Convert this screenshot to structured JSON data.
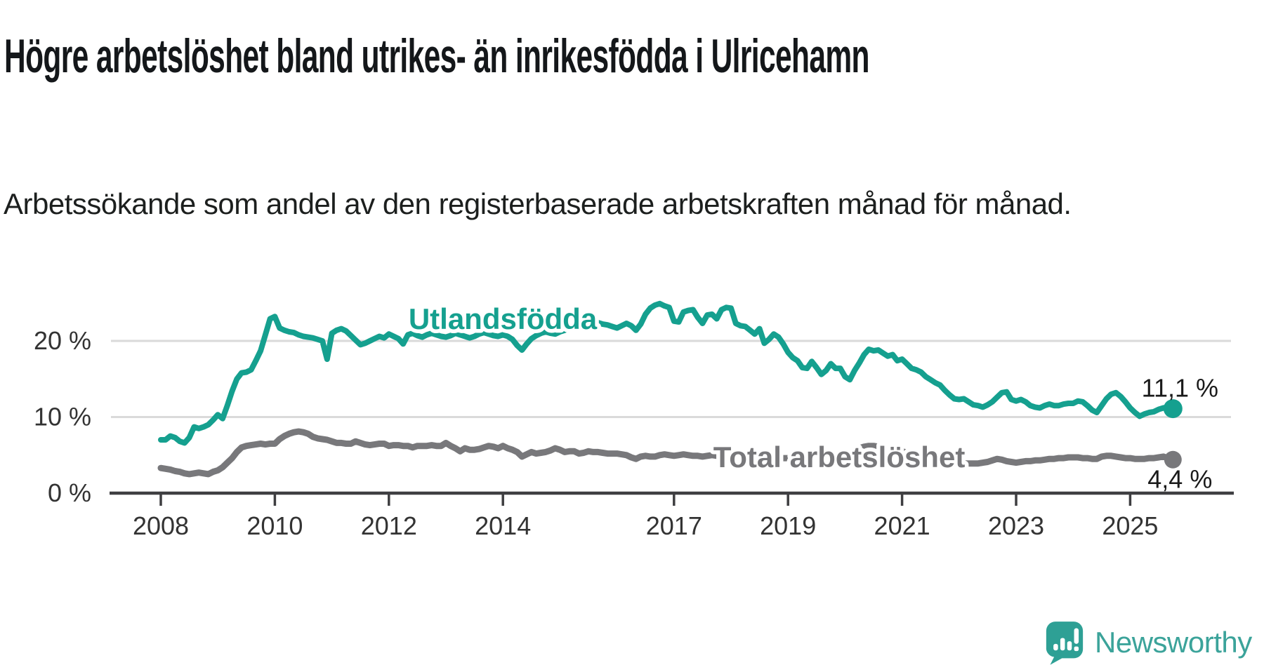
{
  "header": {
    "title": "Högre arbetslöshet bland utrikes- än inrikesfödda i Ulricehamn",
    "subtitle": "Arbetssökande som andel av den registerbaserade arbetskraften månad för månad."
  },
  "chart_data": {
    "type": "line",
    "title": "Högre arbetslöshet bland utrikes- än inrikesfödda i Ulricehamn",
    "subtitle": "Arbetssökande som andel av den registerbaserade arbetskraften månad för månad.",
    "x_frequency": "monthly",
    "x_start": "2008-01",
    "x_end": "2025-10",
    "x_tick_years": [
      2008,
      2010,
      2012,
      2014,
      2017,
      2019,
      2021,
      2023,
      2025
    ],
    "x_tick_labels": [
      "2008",
      "2010",
      "2012",
      "2014",
      "2017",
      "2019",
      "2021",
      "2023",
      "2025"
    ],
    "y_ticks": [
      {
        "value": 0,
        "label": "0 %"
      },
      {
        "value": 10,
        "label": "10 %"
      },
      {
        "value": 20,
        "label": "20 %"
      }
    ],
    "ylim": [
      0,
      27
    ],
    "grid": "horizontal-only",
    "legend_position": "inline-labels",
    "series": [
      {
        "name": "Utlandsfödda",
        "color": "#15A08F",
        "end_label": "11,1 %",
        "last_value": 11.1,
        "values": [
          7.0,
          7.0,
          7.5,
          7.3,
          6.8,
          6.6,
          7.3,
          8.7,
          8.5,
          8.7,
          9.0,
          9.6,
          10.3,
          9.8,
          11.5,
          13.4,
          15.0,
          15.8,
          15.9,
          16.2,
          17.4,
          18.7,
          20.8,
          22.9,
          23.2,
          21.7,
          21.4,
          21.2,
          21.1,
          20.8,
          20.6,
          20.5,
          20.4,
          20.2,
          20.0,
          17.6,
          21.0,
          21.4,
          21.6,
          21.3,
          20.7,
          20.1,
          19.5,
          19.7,
          20.0,
          20.3,
          20.6,
          20.4,
          20.9,
          20.6,
          20.3,
          19.6,
          20.8,
          21.0,
          20.7,
          20.5,
          20.8,
          21.0,
          20.8,
          20.6,
          20.5,
          20.7,
          21.0,
          20.8,
          20.6,
          20.4,
          20.6,
          20.9,
          21.1,
          20.9,
          20.7,
          20.6,
          20.8,
          20.6,
          20.2,
          19.4,
          18.8,
          19.6,
          20.3,
          20.7,
          21.0,
          21.2,
          21.0,
          20.9,
          21.2,
          21.4,
          21.7,
          21.9,
          22.1,
          22.3,
          22.4,
          22.5,
          22.4,
          22.2,
          22.1,
          21.9,
          21.7,
          22.0,
          22.3,
          22.0,
          21.4,
          22.2,
          23.5,
          24.3,
          24.7,
          24.9,
          24.6,
          24.4,
          22.6,
          22.5,
          23.8,
          24.0,
          24.1,
          23.1,
          22.3,
          23.4,
          23.5,
          22.9,
          24.1,
          24.4,
          24.3,
          22.3,
          22.0,
          21.9,
          21.4,
          20.9,
          21.6,
          19.7,
          20.2,
          20.9,
          20.5,
          19.6,
          18.5,
          17.8,
          17.4,
          16.5,
          16.4,
          17.3,
          16.5,
          15.6,
          16.1,
          17.0,
          16.4,
          16.4,
          15.3,
          14.9,
          16.1,
          17.1,
          18.2,
          18.9,
          18.7,
          18.8,
          18.4,
          18.0,
          18.2,
          17.4,
          17.6,
          17.0,
          16.4,
          16.2,
          15.9,
          15.3,
          14.9,
          14.5,
          14.2,
          13.5,
          12.9,
          12.4,
          12.3,
          12.4,
          12.0,
          11.6,
          11.5,
          11.3,
          11.6,
          12.0,
          12.6,
          13.2,
          13.3,
          12.3,
          12.1,
          12.3,
          12.0,
          11.5,
          11.3,
          11.2,
          11.5,
          11.7,
          11.5,
          11.5,
          11.7,
          11.8,
          11.8,
          12.1,
          12.0,
          11.5,
          10.9,
          10.6,
          11.5,
          12.4,
          13.0,
          13.2,
          12.7,
          12.0,
          11.2,
          10.6,
          10.1,
          10.4,
          10.6,
          10.7,
          11.0,
          11.2,
          11.3,
          11.1
        ]
      },
      {
        "name": "Total arbetslöshet",
        "color": "#78787B",
        "end_label": "4,4 %",
        "last_value": 4.4,
        "values": [
          3.3,
          3.2,
          3.1,
          2.9,
          2.8,
          2.6,
          2.5,
          2.6,
          2.7,
          2.6,
          2.5,
          2.8,
          3.0,
          3.4,
          4.0,
          4.6,
          5.4,
          6.0,
          6.2,
          6.3,
          6.4,
          6.5,
          6.4,
          6.5,
          6.5,
          7.1,
          7.5,
          7.8,
          8.0,
          8.1,
          8.0,
          7.8,
          7.4,
          7.2,
          7.1,
          7.0,
          6.8,
          6.6,
          6.6,
          6.5,
          6.5,
          6.8,
          6.6,
          6.4,
          6.3,
          6.4,
          6.5,
          6.5,
          6.2,
          6.3,
          6.3,
          6.2,
          6.2,
          6.0,
          6.2,
          6.2,
          6.2,
          6.3,
          6.2,
          6.2,
          6.6,
          6.2,
          5.9,
          5.5,
          5.9,
          5.7,
          5.7,
          5.8,
          6.0,
          6.2,
          6.1,
          5.9,
          6.2,
          5.9,
          5.7,
          5.4,
          4.8,
          5.1,
          5.4,
          5.2,
          5.3,
          5.4,
          5.6,
          5.9,
          5.7,
          5.4,
          5.5,
          5.5,
          5.2,
          5.3,
          5.5,
          5.4,
          5.4,
          5.3,
          5.2,
          5.2,
          5.2,
          5.1,
          5.0,
          4.7,
          4.5,
          4.8,
          4.9,
          4.8,
          4.8,
          5.0,
          5.1,
          5.0,
          4.9,
          5.0,
          5.1,
          5.0,
          4.9,
          4.9,
          4.8,
          4.9,
          5.0,
          4.9,
          4.9,
          4.9,
          4.9,
          4.8,
          4.8,
          4.7,
          4.7,
          4.6,
          4.7,
          4.7,
          4.6,
          4.6,
          4.6,
          4.6,
          4.6,
          4.6,
          4.5,
          4.5,
          4.5,
          4.6,
          4.6,
          4.6,
          4.7,
          4.7,
          4.8,
          4.8,
          4.9,
          5.1,
          5.5,
          5.9,
          6.1,
          6.2,
          6.2,
          6.1,
          6.0,
          5.8,
          5.7,
          5.6,
          5.5,
          5.3,
          5.1,
          4.9,
          4.7,
          4.5,
          4.4,
          4.3,
          4.2,
          4.1,
          4.0,
          4.0,
          3.9,
          3.9,
          3.9,
          3.9,
          3.9,
          4.0,
          4.1,
          4.3,
          4.5,
          4.4,
          4.2,
          4.1,
          4.0,
          4.1,
          4.2,
          4.2,
          4.3,
          4.3,
          4.4,
          4.5,
          4.5,
          4.6,
          4.6,
          4.7,
          4.7,
          4.7,
          4.6,
          4.6,
          4.5,
          4.5,
          4.8,
          4.9,
          4.9,
          4.8,
          4.7,
          4.6,
          4.6,
          4.5,
          4.5,
          4.5,
          4.6,
          4.6,
          4.7,
          4.8,
          4.6,
          4.4
        ]
      }
    ]
  },
  "footer": {
    "brand": "Newsworthy",
    "logo_icon": "speech-bubble-bar-chart-icon",
    "brand_color": "#3BA39A"
  }
}
